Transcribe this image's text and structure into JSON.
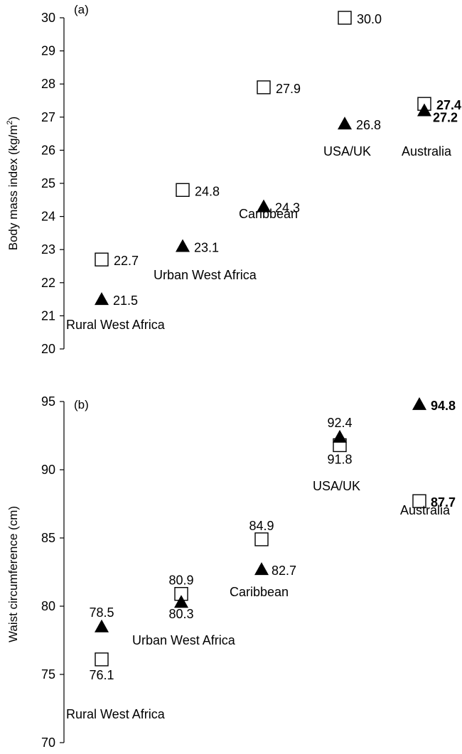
{
  "chart_data": [
    {
      "type": "scatter",
      "panel_label": "(a)",
      "ylabel": "Body mass index (kg/m²)",
      "ylabel_main": "Body mass index (kg/m",
      "ylabel_sup": "2",
      "ylabel_close": ")",
      "ylim": [
        20,
        30
      ],
      "yticks": [
        "20",
        "21",
        "22",
        "23",
        "24",
        "25",
        "26",
        "27",
        "28",
        "29",
        "30"
      ],
      "grid": false,
      "groups": [
        "Rural West Africa",
        "Urban West Africa",
        "Caribbean",
        "USA/UK",
        "Australia"
      ],
      "series": [
        {
          "marker": "open-square",
          "values": [
            22.7,
            24.8,
            27.9,
            30.0,
            27.4
          ],
          "labels": [
            "22.7",
            "24.8",
            "27.9",
            "30.0",
            "27.4"
          ]
        },
        {
          "marker": "filled-triangle",
          "values": [
            21.5,
            23.1,
            24.3,
            26.8,
            27.2
          ],
          "labels": [
            "21.5",
            "23.1",
            "24.3",
            "26.8",
            "27.2"
          ]
        }
      ]
    },
    {
      "type": "scatter",
      "panel_label": "(b)",
      "ylabel": "Waist circumference (cm)",
      "ylim": [
        70,
        95
      ],
      "yticks": [
        "70",
        "75",
        "80",
        "85",
        "90",
        "95"
      ],
      "grid": false,
      "groups": [
        "Rural West Africa",
        "Urban West Africa",
        "Caribbean",
        "USA/UK",
        "Australia"
      ],
      "series": [
        {
          "marker": "open-square",
          "values": [
            76.1,
            80.9,
            84.9,
            91.8,
            87.7
          ],
          "labels": [
            "76.1",
            "80.9",
            "84.9",
            "91.8",
            "87.7"
          ]
        },
        {
          "marker": "filled-triangle",
          "values": [
            78.5,
            80.3,
            82.7,
            92.4,
            94.8
          ],
          "labels": [
            "78.5",
            "80.3",
            "82.7",
            "92.4",
            "94.8"
          ]
        }
      ]
    }
  ]
}
